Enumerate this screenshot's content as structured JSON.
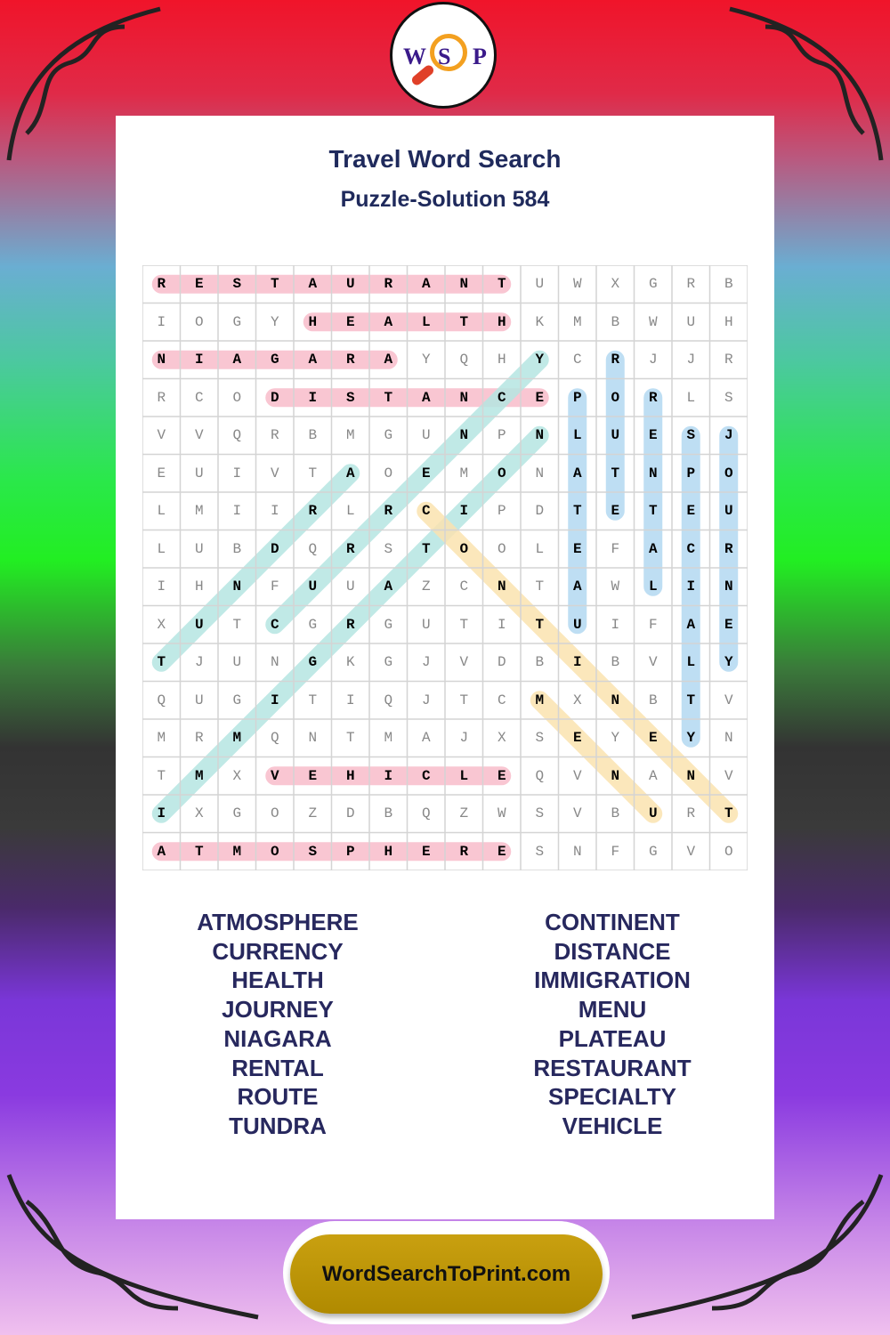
{
  "logo": {
    "letters": [
      "W",
      "S",
      "P"
    ]
  },
  "title": "Travel Word Search",
  "subtitle": "Puzzle-Solution 584",
  "grid": [
    "RESTAURANTUWXGRB",
    "IOGYHEALTHKMBWUH",
    "NIAGARAYQHYCRJJR",
    "RCODISTANCEPORLS",
    "VVQRBMGUNPNLUESJ",
    "EUIVTAOEMONATNPO",
    "LMIIRLRCIPDTETEU",
    "LUBDQRSTOOLEFACR",
    "IHNFUUAZCNTAWLIN",
    "XUTCGRGUTITUIFAE",
    "TJUNGKGJVDBIBVLY",
    "QUGITIQJTCMXNBTV",
    "MRMQNTMAJXSEYEYN",
    "TMXVEHICLEQVNANV",
    "IXGOZDBQZWSVBURT",
    "ATMOSPHERESNFGVO"
  ],
  "solutions": [
    {
      "word": "RESTAURANT",
      "row": 0,
      "col": 0,
      "dir": "across"
    },
    {
      "word": "HEALTH",
      "row": 1,
      "col": 4,
      "dir": "across"
    },
    {
      "word": "NIAGARA",
      "row": 2,
      "col": 0,
      "dir": "across"
    },
    {
      "word": "DISTANCE",
      "row": 3,
      "col": 3,
      "dir": "across"
    },
    {
      "word": "VEHICLE",
      "row": 13,
      "col": 3,
      "dir": "across"
    },
    {
      "word": "ATMOSPHERE",
      "row": 15,
      "col": 0,
      "dir": "across"
    },
    {
      "word": "PLATEAU",
      "row": 3,
      "col": 11,
      "dir": "down"
    },
    {
      "word": "ROUTE",
      "row": 2,
      "col": 12,
      "dir": "down"
    },
    {
      "word": "RENTAL",
      "row": 3,
      "col": 13,
      "dir": "down"
    },
    {
      "word": "SPECIALTY",
      "row": 4,
      "col": 14,
      "dir": "down"
    },
    {
      "word": "JOURNEY",
      "row": 4,
      "col": 15,
      "dir": "down"
    },
    {
      "word": "CURRENCY",
      "row": 9,
      "col": 3,
      "dir": "up-right"
    },
    {
      "word": "TUNDRA",
      "row": 10,
      "col": 0,
      "dir": "up-right"
    },
    {
      "word": "IMMIGRATION",
      "row": 14,
      "col": 0,
      "dir": "up-right"
    },
    {
      "word": "CONTINENT",
      "row": 6,
      "col": 7,
      "dir": "down-right"
    },
    {
      "word": "MENU",
      "row": 11,
      "col": 10,
      "dir": "down-right"
    }
  ],
  "highlight_colors": {
    "across": "#f9c6d2",
    "down": "#b3d9f2",
    "up-right": "#b6e6e2",
    "down-right": "#fbe3b0"
  },
  "word_list": {
    "left": [
      "ATMOSPHERE",
      "CURRENCY",
      "HEALTH",
      "JOURNEY",
      "NIAGARA",
      "RENTAL",
      "ROUTE",
      "TUNDRA"
    ],
    "right": [
      "CONTINENT",
      "DISTANCE",
      "IMMIGRATION",
      "MENU",
      "PLATEAU",
      "RESTAURANT",
      "SPECIALTY",
      "VEHICLE"
    ]
  },
  "footer": {
    "site": "WordSearchToPrint.com"
  }
}
